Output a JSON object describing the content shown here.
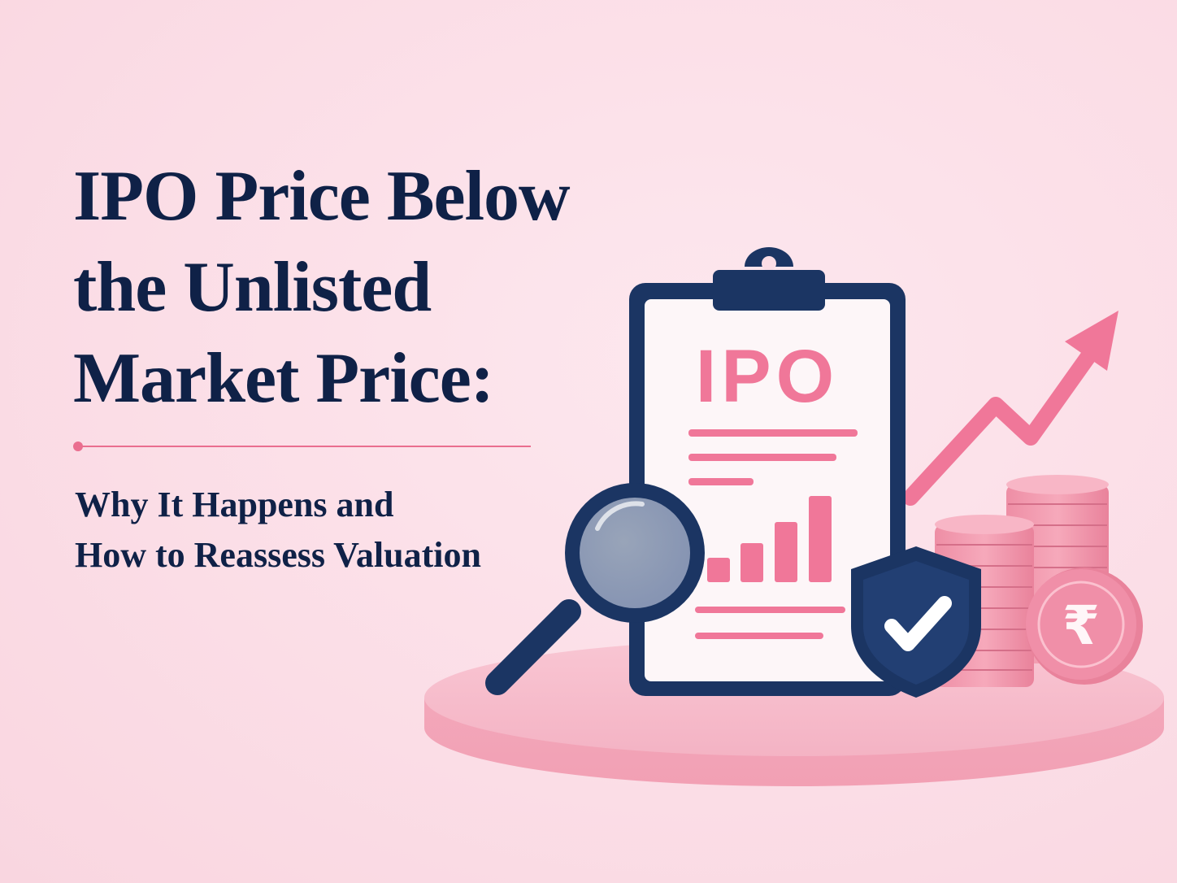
{
  "headline": {
    "line1": "IPO Price Below",
    "line2": "the Unlisted",
    "line3": "Market Price:"
  },
  "subheadline": {
    "line1": "Why It Happens and",
    "line2": "How to Reassess Valuation"
  },
  "illustration": {
    "clipboard_label": "IPO",
    "coin_symbol": "₹",
    "icons": [
      "clipboard-icon",
      "magnifier-icon",
      "shield-check-icon",
      "coin-stack-icon",
      "rupee-coin-icon",
      "trend-arrow-icon"
    ]
  },
  "colors": {
    "background": "#fbdde6",
    "navy": "#0f2147",
    "pink": "#f07799",
    "pink_light": "#f6a9bc"
  }
}
